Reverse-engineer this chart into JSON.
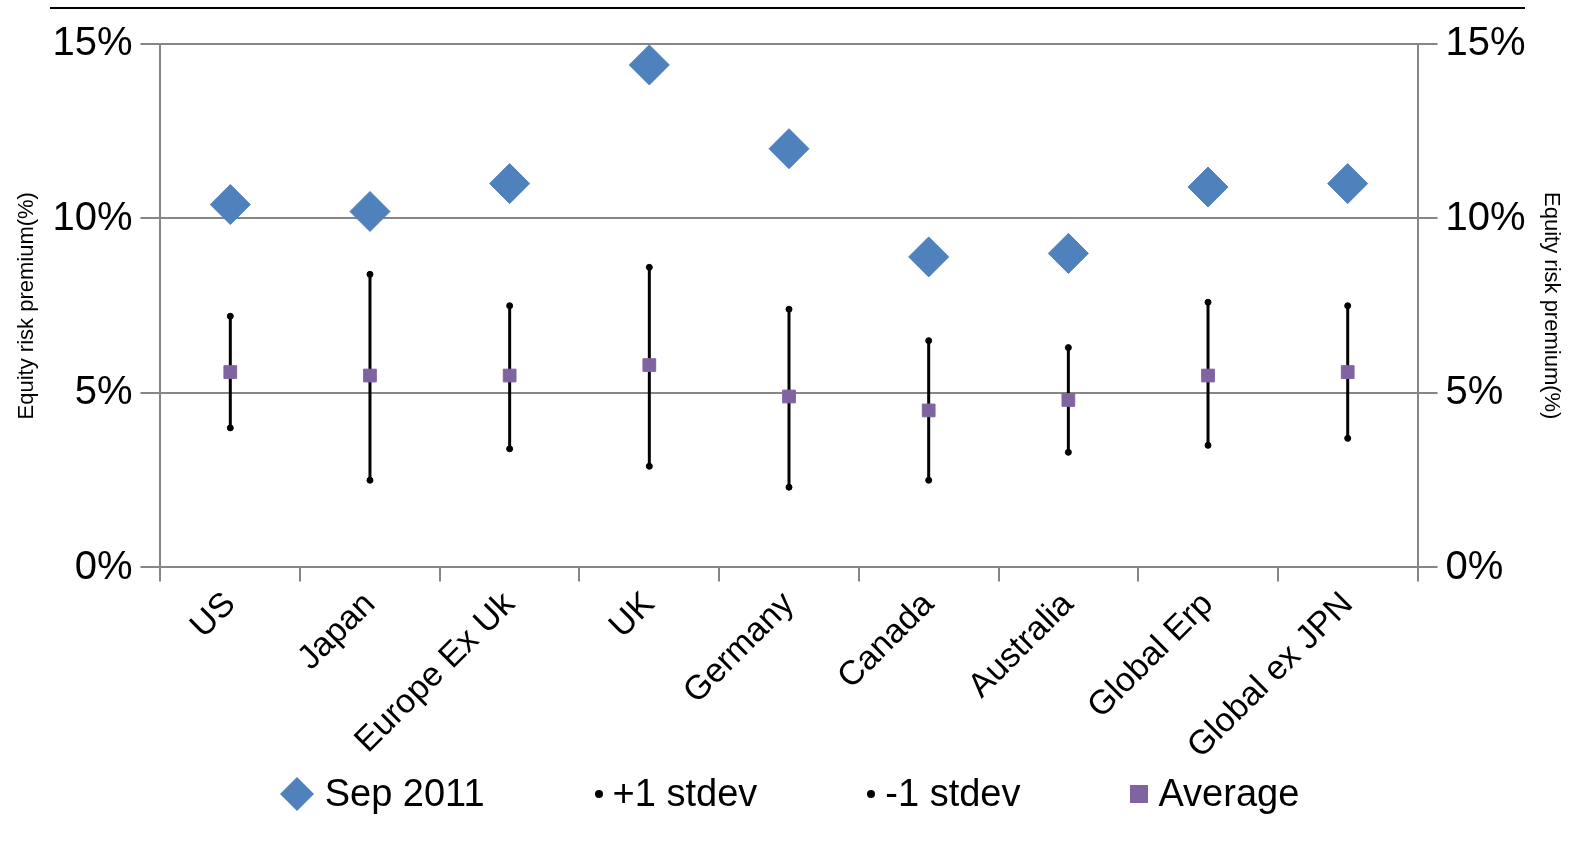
{
  "chart_data": {
    "type": "scatter",
    "ylabel": "Equity risk premium(%)",
    "y2label": "Equity risk premium(%)",
    "categories": [
      "US",
      "Japan",
      "Europe Ex Uk",
      "UK",
      "Germany",
      "Canada",
      "Australia",
      "Global Erp",
      "Global ex JPN"
    ],
    "series": [
      {
        "name": "Sep 2011",
        "type": "scatter",
        "marker": "diamond",
        "color": "#4f81bd",
        "values": [
          10.4,
          10.2,
          11.0,
          14.4,
          12.0,
          8.9,
          9.0,
          10.9,
          11.0
        ]
      },
      {
        "name": "+1 stdev",
        "type": "scatter",
        "marker": "circle",
        "color": "#000000",
        "values": [
          7.2,
          8.4,
          7.5,
          8.6,
          7.4,
          6.5,
          6.3,
          7.6,
          7.5
        ]
      },
      {
        "name": "-1 stdev",
        "type": "scatter",
        "marker": "circle",
        "color": "#000000",
        "values": [
          4.0,
          2.5,
          3.4,
          2.9,
          2.3,
          2.5,
          3.3,
          3.5,
          3.7
        ]
      },
      {
        "name": "Average",
        "type": "scatter",
        "marker": "square",
        "color": "#8064a2",
        "values": [
          5.6,
          5.5,
          5.5,
          5.8,
          4.9,
          4.5,
          4.8,
          5.5,
          5.6
        ]
      }
    ],
    "ylim": [
      0,
      15
    ],
    "yticks": [
      {
        "value": 0,
        "label": "0%"
      },
      {
        "value": 5,
        "label": "5%"
      },
      {
        "value": 10,
        "label": "10%"
      },
      {
        "value": 15,
        "label": "15%"
      }
    ],
    "y2lim": [
      0,
      15
    ],
    "y2ticks": [
      {
        "value": 0,
        "label": "0%"
      },
      {
        "value": 5,
        "label": "5%"
      },
      {
        "value": 10,
        "label": "10%"
      },
      {
        "value": 15,
        "label": "15%"
      }
    ],
    "grid": "y",
    "legend": "bottom"
  }
}
